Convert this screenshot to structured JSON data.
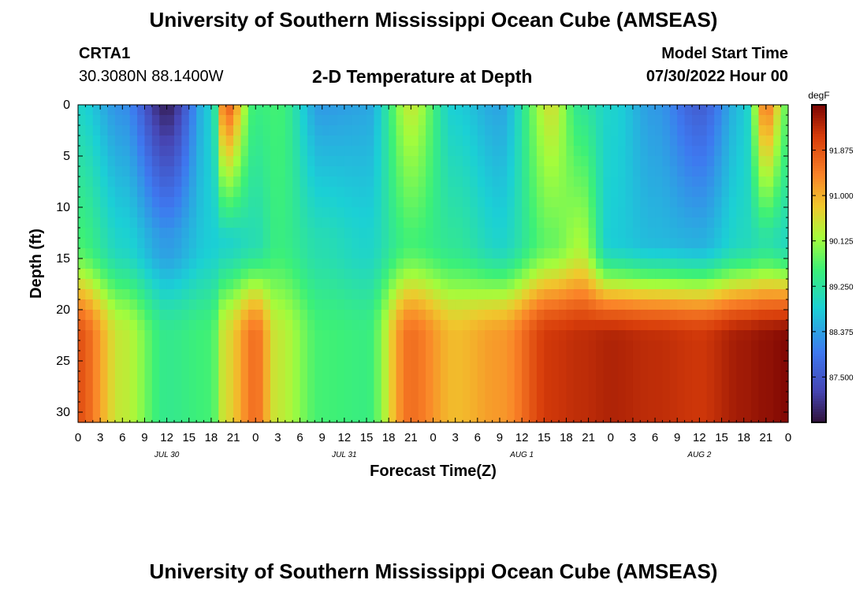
{
  "header": {
    "title": "University of Southern Mississippi Ocean Cube (AMSEAS)",
    "station_id": "CRTA1",
    "coordinates": "30.3080N  88.1400W",
    "plot_title": "2-D Temperature at Depth",
    "model_start_label": "Model Start Time",
    "model_start_value": "07/30/2022 Hour 00"
  },
  "footer": {
    "title": "University of Southern Mississippi Ocean Cube (AMSEAS)"
  },
  "chart_data": {
    "type": "heatmap",
    "title": "2-D Temperature at Depth",
    "xlabel": "Forecast Time(Z)",
    "ylabel": "Depth (ft)",
    "x_tick_labels": [
      "0",
      "3",
      "6",
      "9",
      "12",
      "15",
      "18",
      "21",
      "0",
      "3",
      "6",
      "9",
      "12",
      "15",
      "18",
      "21",
      "0",
      "3",
      "6",
      "9",
      "12",
      "15",
      "18",
      "21",
      "0",
      "3",
      "6",
      "9",
      "12",
      "15",
      "18",
      "21",
      "0"
    ],
    "day_labels": [
      {
        "label": "JUL 30",
        "hour": 12
      },
      {
        "label": "JUL 31",
        "hour": 36
      },
      {
        "label": "AUG 1",
        "hour": 60
      },
      {
        "label": "AUG 2",
        "hour": 84
      }
    ],
    "xlim_hours": [
      0,
      96
    ],
    "y_ticks": [
      0,
      5,
      10,
      15,
      20,
      25,
      30
    ],
    "ylim_ft": [
      0,
      31
    ],
    "colorbar": {
      "units": "degF",
      "range": [
        86.625,
        92.75
      ],
      "tick_values": [
        91.875,
        91.0,
        90.125,
        89.25,
        88.375,
        87.5
      ],
      "tick_labels": [
        "91.875",
        "91.000",
        "90.125",
        "89.250",
        "88.375",
        "87.500"
      ]
    },
    "temperature_keypoints_degF": [
      {
        "hour": 0,
        "surface": 88.9,
        "mid": 89.6,
        "bottom": 91.9
      },
      {
        "hour": 6,
        "surface": 88.2,
        "mid": 88.9,
        "bottom": 90.4
      },
      {
        "hour": 12,
        "surface": 86.8,
        "mid": 88.3,
        "bottom": 89.4
      },
      {
        "hour": 18,
        "surface": 88.8,
        "mid": 88.8,
        "bottom": 89.6
      },
      {
        "hour": 20,
        "surface": 91.8,
        "mid": 88.9,
        "bottom": 90.6
      },
      {
        "hour": 24,
        "surface": 89.5,
        "mid": 89.1,
        "bottom": 91.6
      },
      {
        "hour": 27,
        "surface": 89.6,
        "mid": 89.5,
        "bottom": 90.4
      },
      {
        "hour": 33,
        "surface": 88.3,
        "mid": 89.1,
        "bottom": 89.6
      },
      {
        "hour": 39,
        "surface": 88.4,
        "mid": 88.9,
        "bottom": 89.5
      },
      {
        "hour": 45,
        "surface": 90.4,
        "mid": 89.6,
        "bottom": 91.6
      },
      {
        "hour": 51,
        "surface": 88.8,
        "mid": 89.3,
        "bottom": 90.9
      },
      {
        "hour": 57,
        "surface": 88.4,
        "mid": 88.9,
        "bottom": 91.2
      },
      {
        "hour": 64,
        "surface": 90.5,
        "mid": 89.8,
        "bottom": 92.2
      },
      {
        "hour": 68,
        "surface": 89.3,
        "mid": 90.2,
        "bottom": 92.3
      },
      {
        "hour": 72,
        "surface": 88.9,
        "mid": 88.8,
        "bottom": 92.4
      },
      {
        "hour": 78,
        "surface": 88.3,
        "mid": 88.6,
        "bottom": 92.3
      },
      {
        "hour": 84,
        "surface": 87.6,
        "mid": 88.5,
        "bottom": 92.2
      },
      {
        "hour": 90,
        "surface": 88.7,
        "mid": 89.0,
        "bottom": 92.5
      },
      {
        "hour": 93,
        "surface": 91.5,
        "mid": 89.2,
        "bottom": 92.6
      },
      {
        "hour": 96,
        "surface": 89.8,
        "mid": 89.0,
        "bottom": 92.7
      }
    ]
  }
}
